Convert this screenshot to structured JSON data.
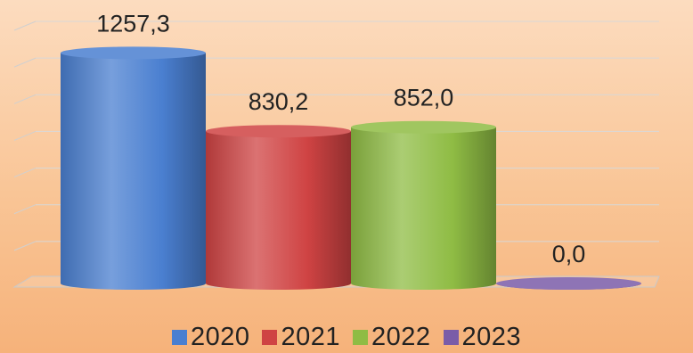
{
  "chart_data": {
    "type": "bar",
    "title": "",
    "xlabel": "",
    "ylabel": "",
    "categories": [
      "2020",
      "2021",
      "2022",
      "2023"
    ],
    "values": [
      1257.3,
      830.2,
      852.0,
      0.0
    ],
    "value_labels": [
      "1257,3",
      "830,2",
      "852,0",
      "0,0"
    ],
    "colors": [
      "#4a7fd0",
      "#cf4343",
      "#8fbc44",
      "#7a5ca8"
    ],
    "ylim": [
      0,
      1400
    ],
    "grid": true,
    "style": "3d-cylinder",
    "legend": {
      "position": "bottom",
      "entries": [
        "2020",
        "2021",
        "2022",
        "2023"
      ]
    }
  }
}
